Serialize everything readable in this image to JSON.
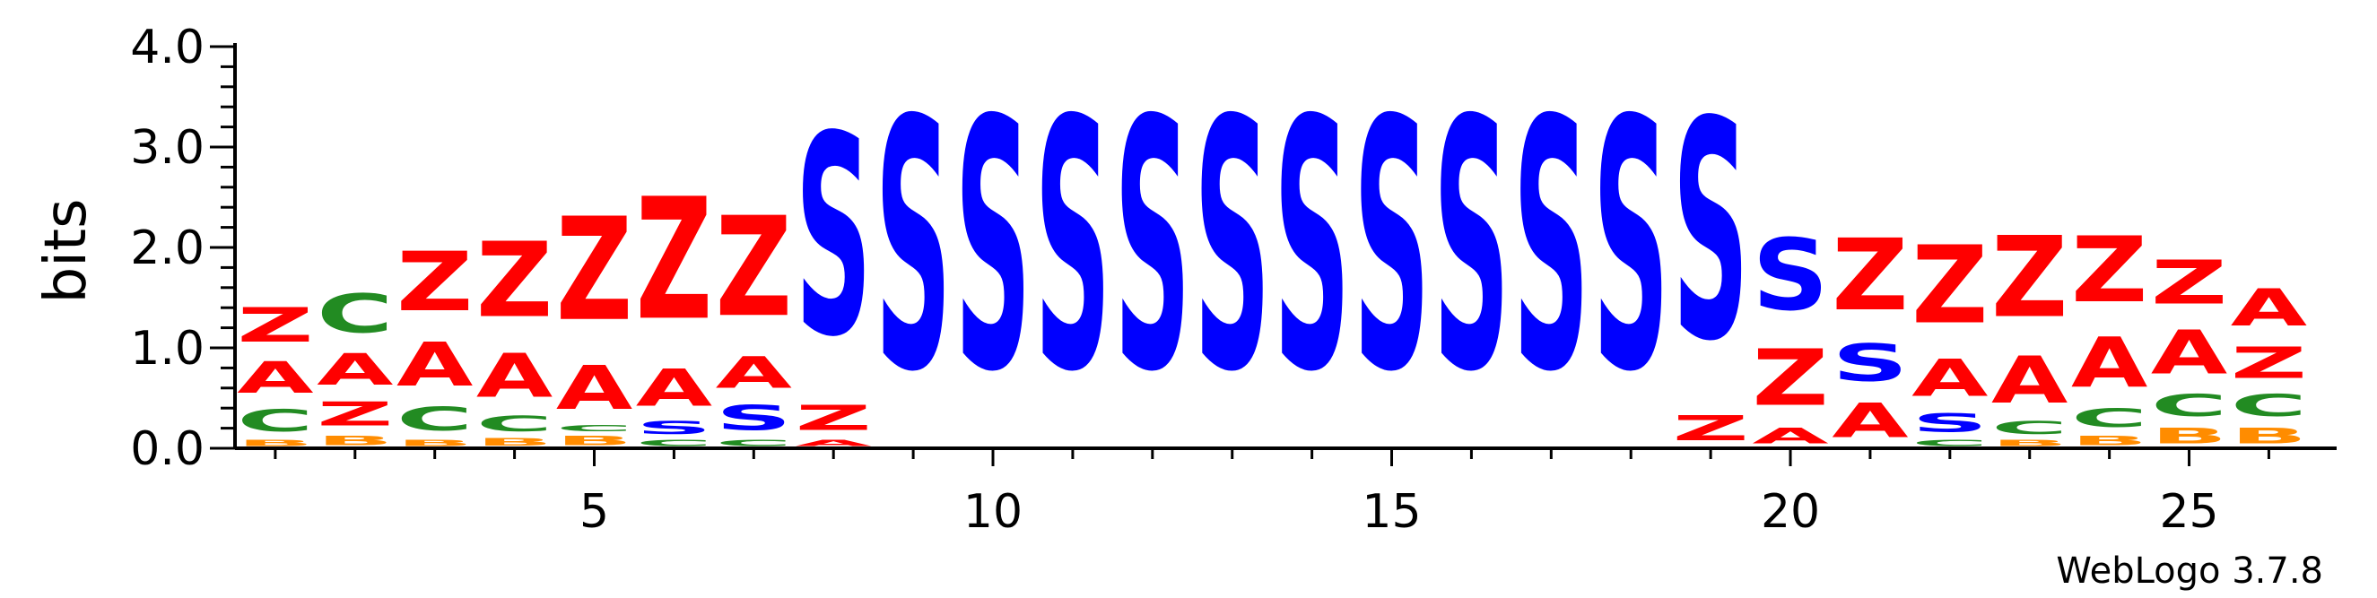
{
  "chart_data": {
    "type": "sequence-logo",
    "ylabel": "bits",
    "ylim": [
      0,
      4.0
    ],
    "y_ticks": [
      "0.0",
      "1.0",
      "2.0",
      "3.0",
      "4.0"
    ],
    "x_ticks": [
      "5",
      "10",
      "15",
      "20",
      "25"
    ],
    "x_tick_values": [
      5,
      10,
      15,
      20,
      25
    ],
    "num_positions": 26,
    "credit": "WebLogo 3.7.8",
    "colors": {
      "Z": "#ff0000",
      "A": "#ff0000",
      "S": "#0000ff",
      "C": "#228b22",
      "B": "#ff8c00",
      "T": "#800080",
      "Q": "#ff0000",
      "O": "#ff0000"
    },
    "positions": [
      {
        "pos": 1,
        "stack": [
          [
            "B",
            0.1
          ],
          [
            "C",
            0.35
          ],
          [
            "A",
            0.5
          ],
          [
            "Z",
            0.55
          ]
        ]
      },
      {
        "pos": 2,
        "stack": [
          [
            "B",
            0.15
          ],
          [
            "Z",
            0.38
          ],
          [
            "A",
            0.5
          ],
          [
            "C",
            0.62
          ]
        ]
      },
      {
        "pos": 3,
        "stack": [
          [
            "B",
            0.1
          ],
          [
            "C",
            0.38
          ],
          [
            "A",
            0.7
          ],
          [
            "Z",
            0.95
          ]
        ]
      },
      {
        "pos": 4,
        "stack": [
          [
            "B",
            0.12
          ],
          [
            "C",
            0.25
          ],
          [
            "A",
            0.7
          ],
          [
            "Z",
            1.2
          ]
        ]
      },
      {
        "pos": 5,
        "stack": [
          [
            "B",
            0.15
          ],
          [
            "C",
            0.1
          ],
          [
            "A",
            0.7
          ],
          [
            "Z",
            1.65
          ]
        ]
      },
      {
        "pos": 6,
        "stack": [
          [
            "C",
            0.1
          ],
          [
            "S",
            0.2
          ],
          [
            "A",
            0.6
          ],
          [
            "Z",
            1.95
          ]
        ]
      },
      {
        "pos": 7,
        "stack": [
          [
            "C",
            0.1
          ],
          [
            "S",
            0.4
          ],
          [
            "A",
            0.5
          ],
          [
            "Z",
            1.6
          ]
        ]
      },
      {
        "pos": 8,
        "stack": [
          [
            "A",
            0.1
          ],
          [
            "Z",
            0.4
          ],
          [
            "S",
            3.2
          ]
        ]
      },
      {
        "pos": 9,
        "stack": [
          [
            "S",
            4.0
          ]
        ]
      },
      {
        "pos": 10,
        "stack": [
          [
            "S",
            4.0
          ]
        ]
      },
      {
        "pos": 11,
        "stack": [
          [
            "S",
            4.0
          ]
        ]
      },
      {
        "pos": 12,
        "stack": [
          [
            "S",
            4.0
          ]
        ]
      },
      {
        "pos": 13,
        "stack": [
          [
            "S",
            4.0
          ]
        ]
      },
      {
        "pos": 14,
        "stack": [
          [
            "S",
            4.0
          ]
        ]
      },
      {
        "pos": 15,
        "stack": [
          [
            "S",
            4.0
          ]
        ]
      },
      {
        "pos": 16,
        "stack": [
          [
            "S",
            4.0
          ]
        ]
      },
      {
        "pos": 17,
        "stack": [
          [
            "S",
            4.0
          ]
        ]
      },
      {
        "pos": 18,
        "stack": [
          [
            "S",
            4.0
          ]
        ]
      },
      {
        "pos": 19,
        "stack": [
          [
            "Z",
            0.4
          ],
          [
            "S",
            3.5
          ]
        ]
      },
      {
        "pos": 20,
        "stack": [
          [
            "A",
            0.25
          ],
          [
            "Z",
            0.9
          ],
          [
            "S",
            1.15
          ]
        ]
      },
      {
        "pos": 21,
        "stack": [
          [
            "A",
            0.55
          ],
          [
            "S",
            0.6
          ],
          [
            "Z",
            1.15
          ]
        ]
      },
      {
        "pos": 22,
        "stack": [
          [
            "C",
            0.1
          ],
          [
            "S",
            0.3
          ],
          [
            "A",
            0.6
          ],
          [
            "Z",
            1.25
          ]
        ]
      },
      {
        "pos": 23,
        "stack": [
          [
            "B",
            0.1
          ],
          [
            "C",
            0.2
          ],
          [
            "A",
            0.75
          ],
          [
            "Z",
            1.3
          ]
        ]
      },
      {
        "pos": 24,
        "stack": [
          [
            "B",
            0.15
          ],
          [
            "C",
            0.3
          ],
          [
            "A",
            0.8
          ],
          [
            "Z",
            1.05
          ]
        ]
      },
      {
        "pos": 25,
        "stack": [
          [
            "B",
            0.25
          ],
          [
            "C",
            0.35
          ],
          [
            "A",
            0.7
          ],
          [
            "Z",
            0.7
          ]
        ]
      },
      {
        "pos": 26,
        "stack": [
          [
            "B",
            0.25
          ],
          [
            "C",
            0.35
          ],
          [
            "Z",
            0.5
          ],
          [
            "A",
            0.6
          ]
        ]
      }
    ]
  }
}
